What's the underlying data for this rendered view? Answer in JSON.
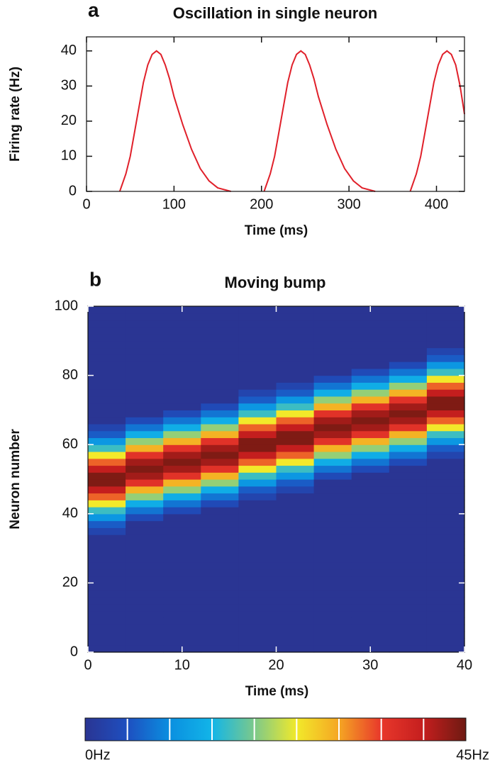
{
  "chart_data": [
    {
      "type": "line",
      "panel_label": "a",
      "title": "Oscillation in single neuron",
      "xlabel": "Time (ms)",
      "ylabel": "Firing rate (Hz)",
      "x": [
        38,
        45,
        50,
        55,
        60,
        65,
        70,
        75,
        80,
        85,
        90,
        95,
        100,
        110,
        120,
        130,
        140,
        150,
        165,
        185,
        203,
        210,
        215,
        220,
        225,
        230,
        235,
        240,
        245,
        250,
        255,
        260,
        265,
        275,
        285,
        295,
        305,
        315,
        330,
        350,
        370,
        377,
        382,
        387,
        392,
        397,
        402,
        407,
        412,
        417,
        422,
        427,
        432
      ],
      "series": [
        {
          "color": "#e0202a",
          "values": [
            0,
            5,
            10,
            17,
            24,
            31,
            36,
            39,
            40,
            39,
            36,
            32,
            27,
            19,
            12,
            6.5,
            3,
            1,
            0,
            null,
            0,
            5,
            10,
            17,
            24,
            31,
            36,
            39,
            40,
            39,
            36,
            32,
            27,
            19,
            12,
            6.5,
            3,
            1,
            0,
            null,
            0,
            5,
            10,
            17,
            24,
            31,
            36,
            39,
            40,
            39,
            36,
            30,
            22
          ]
        }
      ],
      "xlim": [
        0,
        432
      ],
      "ylim": [
        0,
        44
      ],
      "xticks": [
        0,
        100,
        200,
        300,
        400
      ],
      "yticks": [
        0,
        10,
        20,
        30,
        40
      ]
    },
    {
      "type": "heatmap",
      "panel_label": "b",
      "title": "Moving bump",
      "xlabel": "Time (ms)",
      "ylabel": "Neuron number",
      "x": [
        2,
        6,
        10,
        14,
        18,
        22,
        26,
        30,
        34,
        38
      ],
      "y": [
        1,
        3,
        5,
        7,
        9,
        11,
        13,
        15,
        17,
        19,
        21,
        23,
        25,
        27,
        29,
        31,
        33,
        35,
        37,
        39,
        41,
        43,
        45,
        47,
        49,
        51,
        53,
        55,
        57,
        59,
        61,
        63,
        65,
        67,
        69,
        71,
        73,
        75,
        77,
        79,
        81,
        83,
        85,
        87,
        89,
        91,
        93,
        95,
        97,
        99
      ],
      "values": [
        [
          0,
          0,
          0,
          0,
          0,
          0,
          0,
          0,
          0,
          0,
          0,
          0,
          0,
          0,
          0,
          0,
          0,
          3,
          6,
          11,
          17,
          25,
          33,
          40,
          44,
          44,
          40,
          33,
          25,
          17,
          11,
          6,
          3,
          0,
          0,
          0,
          0,
          0,
          0,
          0,
          0,
          0,
          0,
          0,
          0,
          0,
          0,
          0,
          0,
          0
        ],
        [
          0,
          0,
          0,
          0,
          0,
          0,
          0,
          0,
          0,
          0,
          0,
          0,
          0,
          0,
          0,
          0,
          0,
          0,
          0,
          4,
          8,
          14,
          21,
          29,
          36,
          42,
          44,
          42,
          36,
          29,
          21,
          14,
          8,
          4,
          0,
          0,
          0,
          0,
          0,
          0,
          0,
          0,
          0,
          0,
          0,
          0,
          0,
          0,
          0,
          0
        ],
        [
          0,
          0,
          0,
          0,
          0,
          0,
          0,
          0,
          0,
          0,
          0,
          0,
          0,
          0,
          0,
          0,
          0,
          0,
          0,
          0,
          4,
          8,
          14,
          21,
          29,
          36,
          42,
          44,
          42,
          36,
          29,
          21,
          14,
          8,
          4,
          0,
          0,
          0,
          0,
          0,
          0,
          0,
          0,
          0,
          0,
          0,
          0,
          0,
          0,
          0
        ],
        [
          0,
          0,
          0,
          0,
          0,
          0,
          0,
          0,
          0,
          0,
          0,
          0,
          0,
          0,
          0,
          0,
          0,
          0,
          0,
          0,
          0,
          4,
          8,
          14,
          21,
          29,
          36,
          42,
          44,
          42,
          36,
          29,
          21,
          14,
          8,
          4,
          0,
          0,
          0,
          0,
          0,
          0,
          0,
          0,
          0,
          0,
          0,
          0,
          0,
          0
        ],
        [
          0,
          0,
          0,
          0,
          0,
          0,
          0,
          0,
          0,
          0,
          0,
          0,
          0,
          0,
          0,
          0,
          0,
          0,
          0,
          0,
          0,
          0,
          3,
          6,
          11,
          17,
          25,
          33,
          40,
          44,
          44,
          40,
          33,
          25,
          17,
          11,
          6,
          3,
          0,
          0,
          0,
          0,
          0,
          0,
          0,
          0,
          0,
          0,
          0,
          0
        ],
        [
          0,
          0,
          0,
          0,
          0,
          0,
          0,
          0,
          0,
          0,
          0,
          0,
          0,
          0,
          0,
          0,
          0,
          0,
          0,
          0,
          0,
          0,
          0,
          3,
          6,
          11,
          17,
          25,
          33,
          40,
          44,
          44,
          40,
          33,
          25,
          17,
          11,
          6,
          3,
          0,
          0,
          0,
          0,
          0,
          0,
          0,
          0,
          0,
          0,
          0
        ],
        [
          0,
          0,
          0,
          0,
          0,
          0,
          0,
          0,
          0,
          0,
          0,
          0,
          0,
          0,
          0,
          0,
          0,
          0,
          0,
          0,
          0,
          0,
          0,
          0,
          0,
          4,
          8,
          14,
          21,
          29,
          36,
          42,
          44,
          42,
          36,
          29,
          21,
          14,
          8,
          4,
          0,
          0,
          0,
          0,
          0,
          0,
          0,
          0,
          0,
          0
        ],
        [
          0,
          0,
          0,
          0,
          0,
          0,
          0,
          0,
          0,
          0,
          0,
          0,
          0,
          0,
          0,
          0,
          0,
          0,
          0,
          0,
          0,
          0,
          0,
          0,
          0,
          0,
          4,
          8,
          14,
          21,
          29,
          36,
          42,
          44,
          42,
          36,
          29,
          21,
          14,
          8,
          4,
          0,
          0,
          0,
          0,
          0,
          0,
          0,
          0,
          0
        ],
        [
          0,
          0,
          0,
          0,
          0,
          0,
          0,
          0,
          0,
          0,
          0,
          0,
          0,
          0,
          0,
          0,
          0,
          0,
          0,
          0,
          0,
          0,
          0,
          0,
          0,
          0,
          0,
          4,
          8,
          14,
          21,
          29,
          36,
          42,
          44,
          42,
          36,
          29,
          21,
          14,
          8,
          4,
          0,
          0,
          0,
          0,
          0,
          0,
          0,
          0
        ],
        [
          0,
          0,
          0,
          0,
          0,
          0,
          0,
          0,
          0,
          0,
          0,
          0,
          0,
          0,
          0,
          0,
          0,
          0,
          0,
          0,
          0,
          0,
          0,
          0,
          0,
          0,
          0,
          0,
          3,
          6,
          11,
          17,
          25,
          33,
          40,
          44,
          44,
          40,
          33,
          25,
          17,
          11,
          6,
          3,
          0,
          0,
          0,
          0,
          0,
          0
        ]
      ],
      "xlim": [
        0,
        40
      ],
      "ylim": [
        0,
        100
      ],
      "xticks": [
        0,
        10,
        20,
        30,
        40
      ],
      "yticks": [
        0,
        20,
        40,
        60,
        80,
        100
      ],
      "zlim": [
        0,
        45
      ],
      "cticks": [
        0,
        5,
        10,
        15,
        20,
        25,
        30,
        35,
        40,
        45
      ],
      "colorbar_labels": [
        "0Hz",
        "45Hz"
      ],
      "colormap": [
        "#2a3593",
        "#1e4fc0",
        "#0a8fe0",
        "#12b5e8",
        "#7cc98a",
        "#f2e92a",
        "#f5a623",
        "#e8372b",
        "#c41e1e",
        "#6e1a12"
      ]
    }
  ]
}
